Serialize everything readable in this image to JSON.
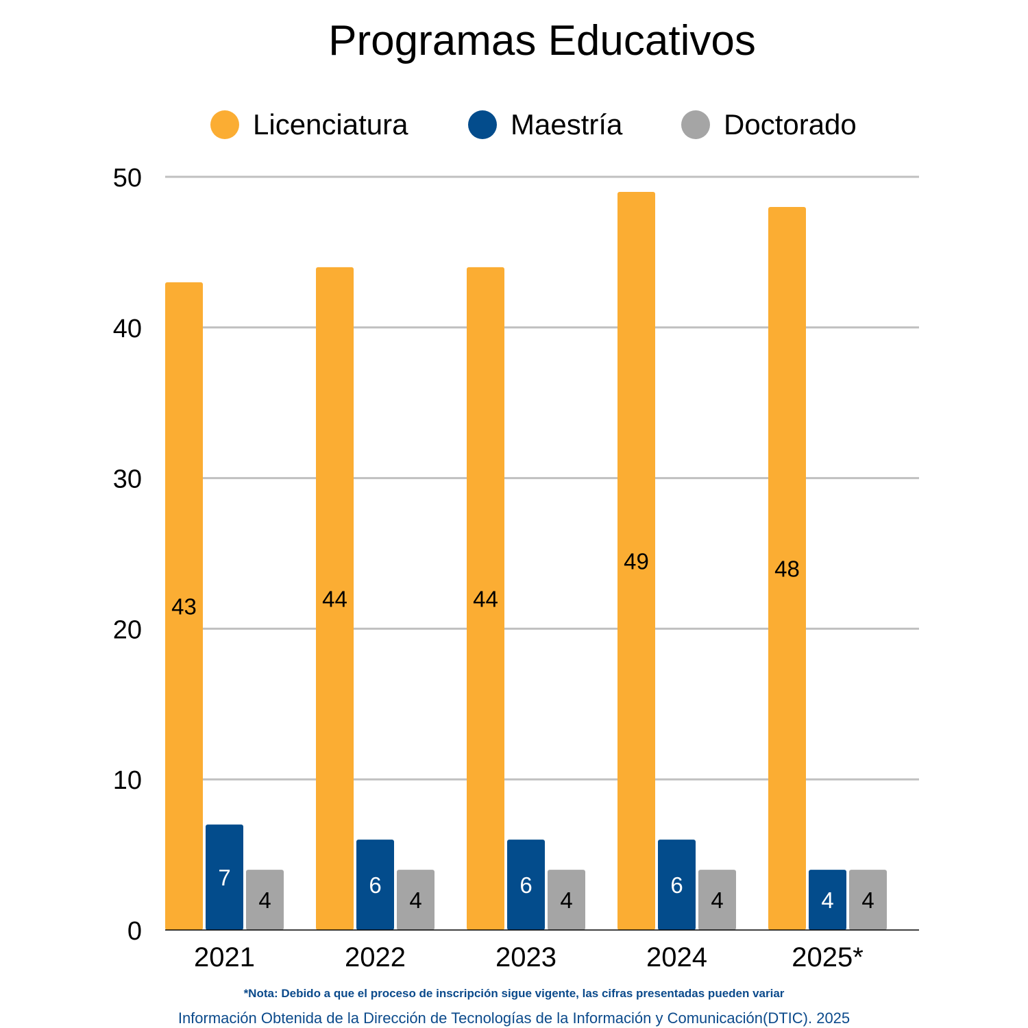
{
  "chart_data": {
    "type": "bar",
    "title": "Programas Educativos",
    "categories": [
      "2021",
      "2022",
      "2023",
      "2024",
      "2025*"
    ],
    "series": [
      {
        "name": "Licenciatura",
        "color": "#fbad33",
        "values": [
          43,
          44,
          44,
          49,
          48
        ]
      },
      {
        "name": "Maestría",
        "color": "#034c8c",
        "values": [
          7,
          6,
          6,
          6,
          4
        ]
      },
      {
        "name": "Doctorado",
        "color": "#a5a5a5",
        "values": [
          4,
          4,
          4,
          4,
          4
        ]
      }
    ],
    "ylim": [
      0,
      50
    ],
    "yticks": [
      0,
      10,
      20,
      30,
      40,
      50
    ],
    "grid": true,
    "legend_position": "top",
    "data_labels": true
  },
  "notes": {
    "note": "*Nota: Debido a que el proceso de inscripción sigue vigente, las cifras presentadas pueden variar",
    "source": "Información Obtenida de la Dirección de Tecnologías de la Información y Comunicación(DTIC). 2025"
  },
  "colors": {
    "gridline": "#c0c0c0",
    "note_text": "#0b4a8b"
  }
}
